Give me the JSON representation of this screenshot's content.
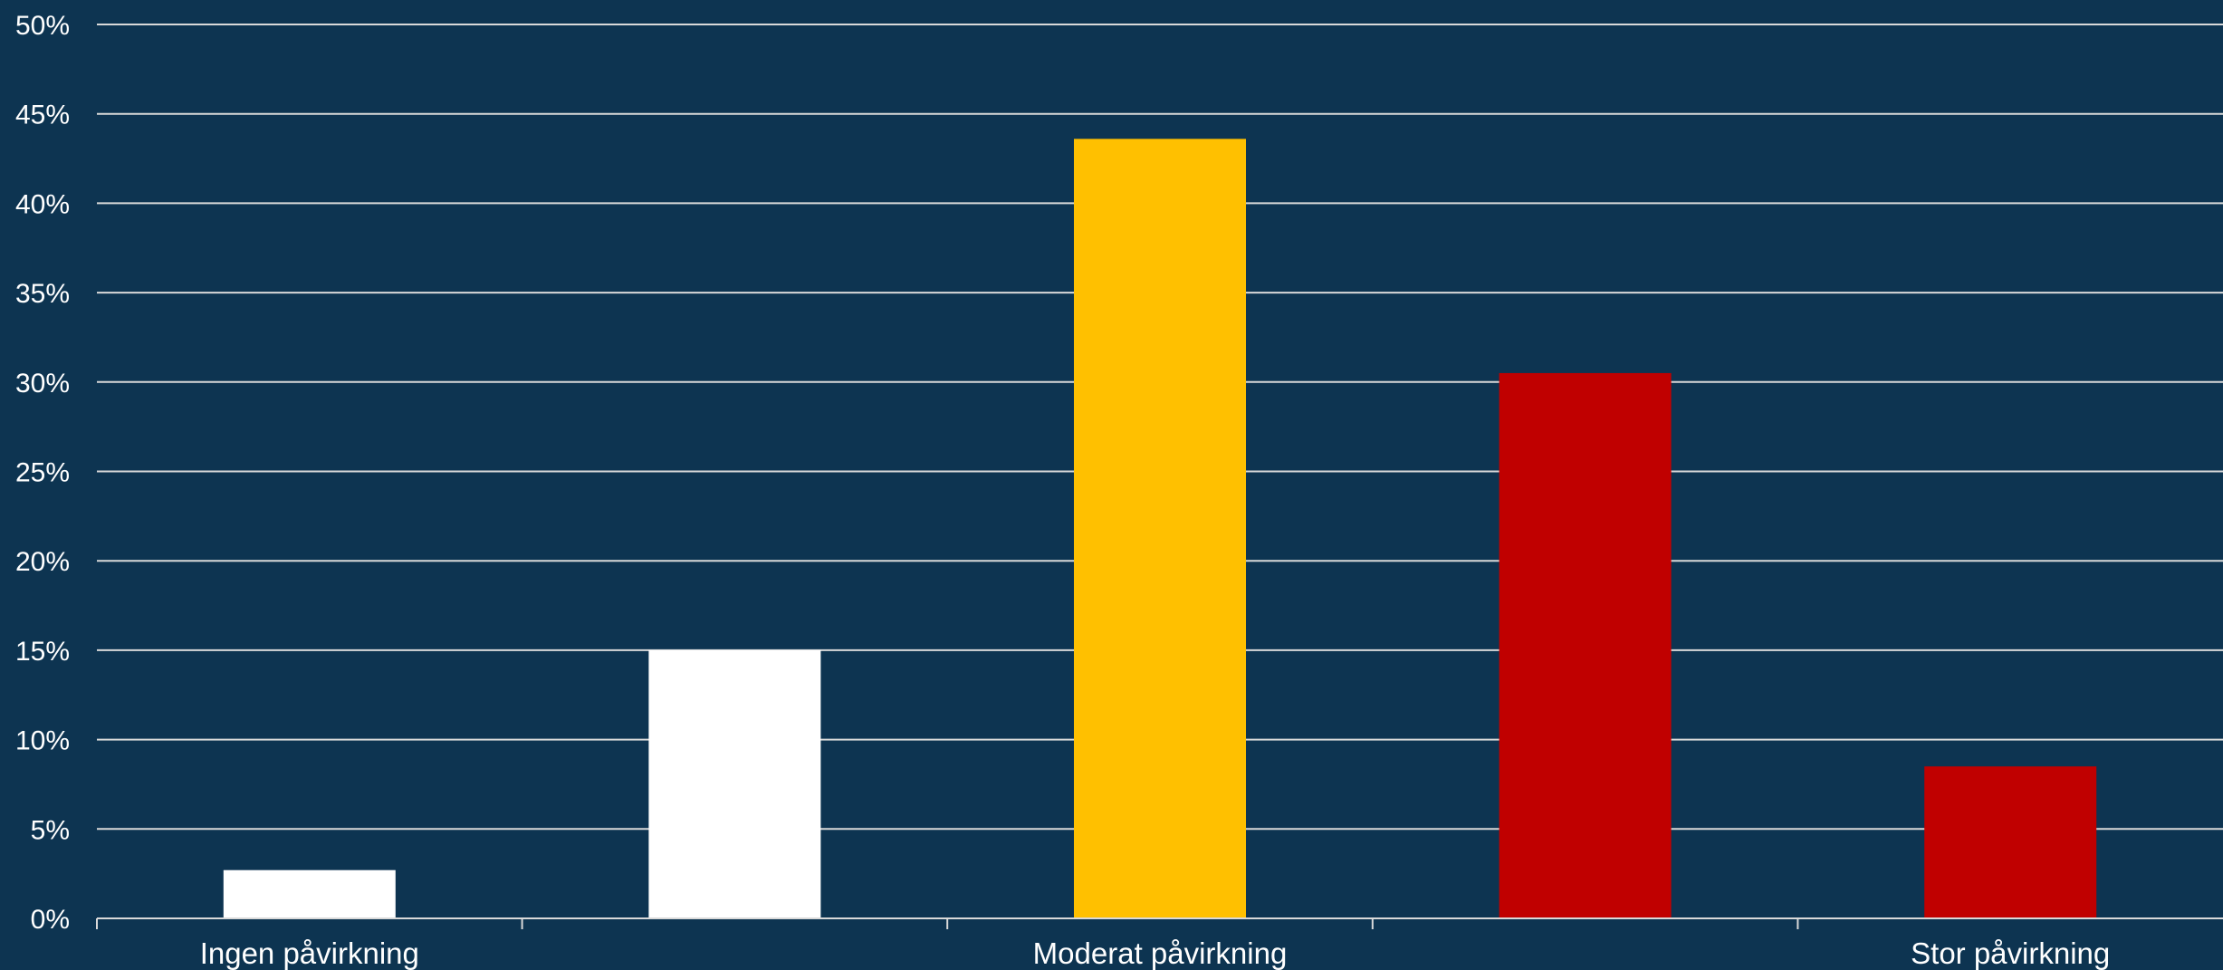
{
  "chart_data": {
    "type": "bar",
    "categories": [
      "Ingen påvirkning",
      "",
      "Moderat påvirkning",
      "",
      "Stor påvirkning"
    ],
    "values": [
      0.027,
      0.15,
      0.436,
      0.305,
      0.085
    ],
    "colors": [
      "#ffffff",
      "#ffffff",
      "#ffc000",
      "#c00000",
      "#c00000"
    ],
    "ylim": [
      0,
      0.5
    ],
    "yticks": [
      0,
      0.05,
      0.1,
      0.15,
      0.2,
      0.25,
      0.3,
      0.35,
      0.4,
      0.45,
      0.5
    ],
    "ytick_labels": [
      "0%",
      "5%",
      "10%",
      "15%",
      "20%",
      "25%",
      "30%",
      "35%",
      "40%",
      "45%",
      "50%"
    ],
    "grid": true,
    "legend": "none",
    "background_color": "#0d3451",
    "gridline_color": "#d9d9d9"
  }
}
